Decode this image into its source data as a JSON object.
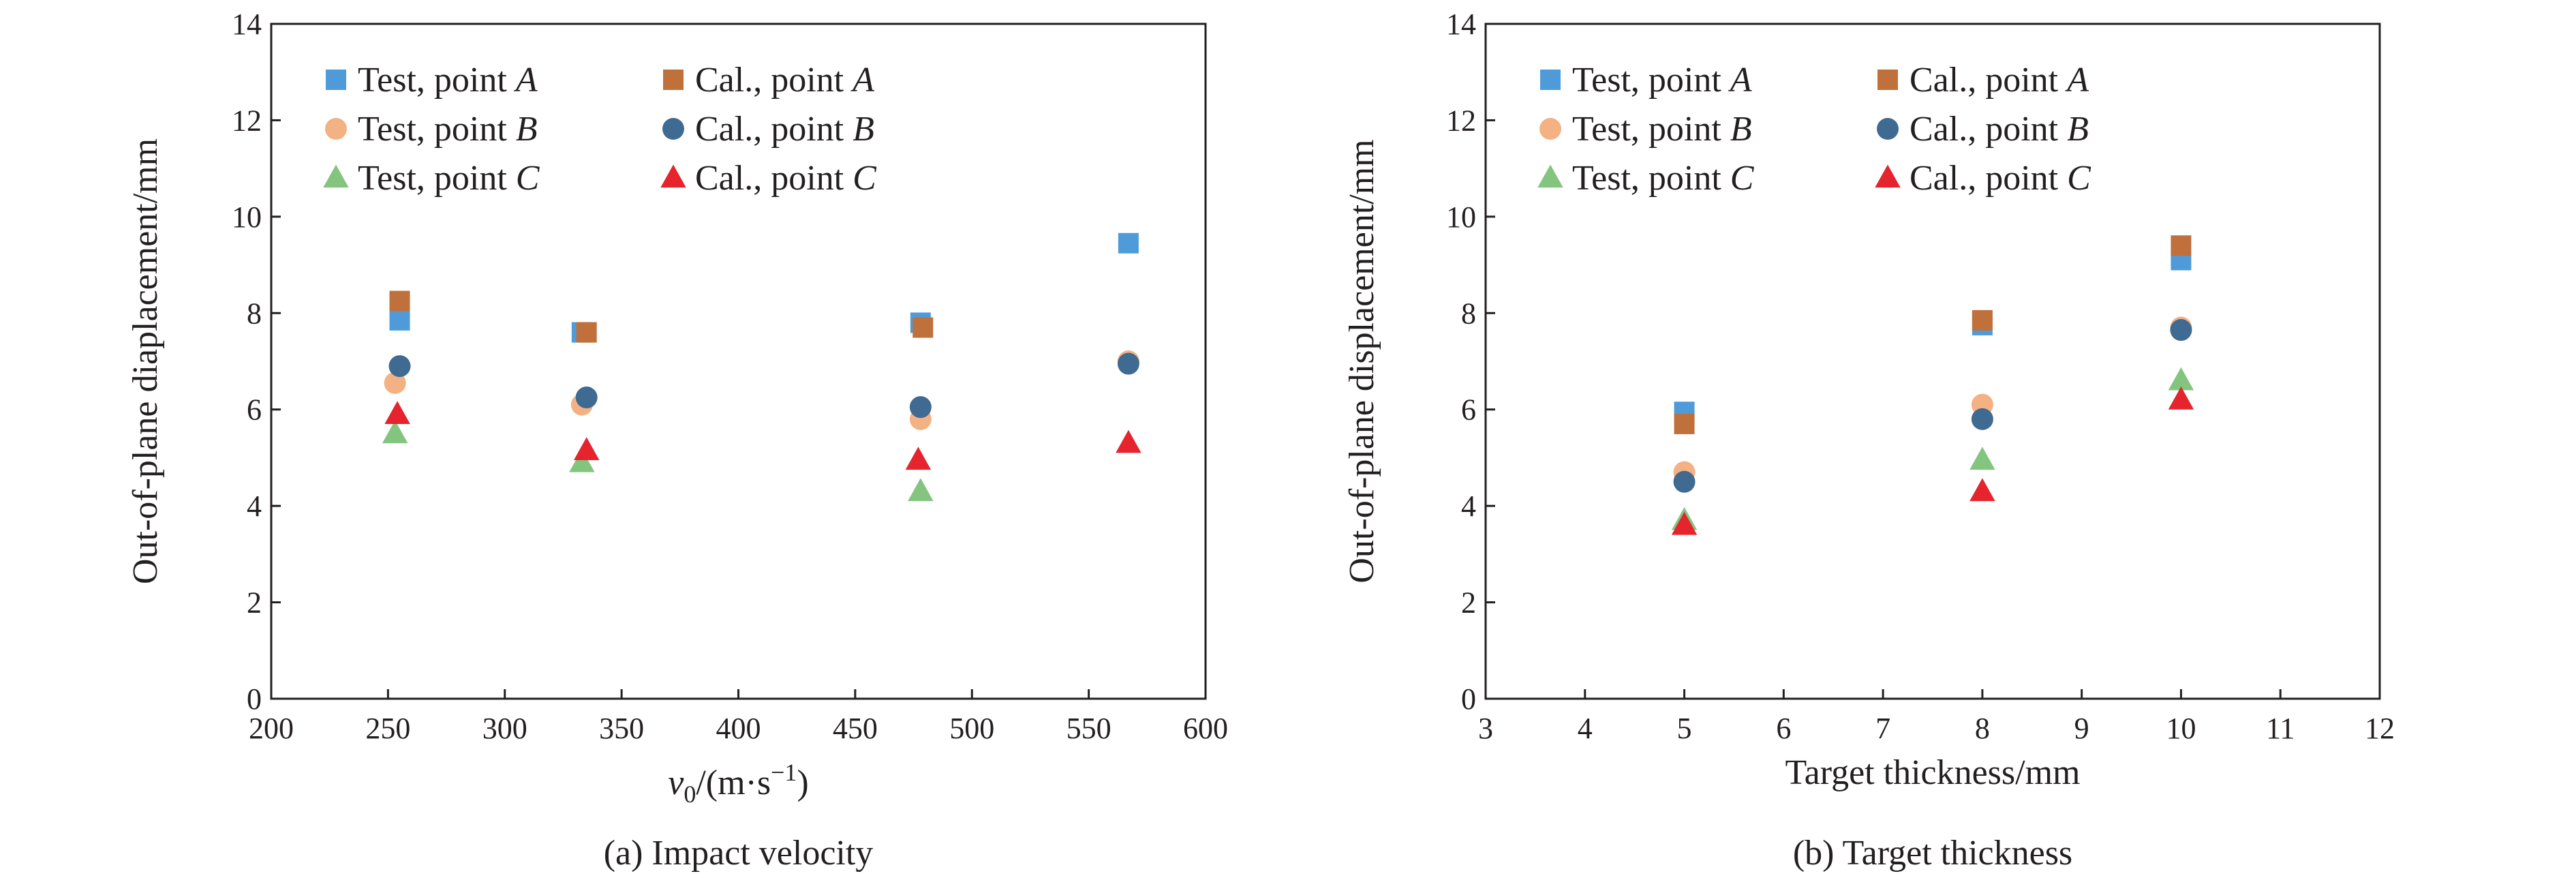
{
  "chart_data": [
    {
      "type": "scatter",
      "caption": "(a) Impact velocity",
      "xlabel": "v0/(m·s−1)",
      "xlabel_parts": {
        "var": "v",
        "sub": "0",
        "unit_pre": "/(m·s",
        "sup": "−1",
        "unit_post": ")"
      },
      "ylabel": "Out-of-plane diaplacement/mm",
      "xlim": [
        200,
        600
      ],
      "ylim": [
        0,
        14
      ],
      "xticks": [
        200,
        250,
        300,
        350,
        400,
        450,
        500,
        550,
        600
      ],
      "yticks": [
        0,
        2,
        4,
        6,
        8,
        10,
        12,
        14
      ],
      "grid": false,
      "legend_position": "top-left",
      "series": [
        {
          "name": "Test, point A",
          "label_prefix": "Test, point ",
          "label_italic": "A",
          "marker": "square",
          "color": "#4f9bd9",
          "points": [
            [
              255,
              7.85
            ],
            [
              333,
              7.6
            ],
            [
              478,
              7.8
            ],
            [
              567,
              9.45
            ]
          ]
        },
        {
          "name": "Test, point B",
          "label_prefix": "Test, point ",
          "label_italic": "B",
          "marker": "circle",
          "color": "#f4b183",
          "points": [
            [
              253,
              6.55
            ],
            [
              333,
              6.1
            ],
            [
              478,
              5.8
            ],
            [
              567,
              7.0
            ]
          ]
        },
        {
          "name": "Test, point C",
          "label_prefix": "Test, point ",
          "label_italic": "C",
          "marker": "triangle",
          "color": "#83c57e",
          "points": [
            [
              253,
              5.5
            ],
            [
              333,
              4.9
            ],
            [
              478,
              4.3
            ]
          ]
        },
        {
          "name": "Cal., point A",
          "label_prefix": "Cal., point ",
          "label_italic": "A",
          "marker": "square",
          "color": "#c0703a",
          "points": [
            [
              255,
              8.25
            ],
            [
              335,
              7.6
            ],
            [
              479,
              7.7
            ]
          ]
        },
        {
          "name": "Cal., point B",
          "label_prefix": "Cal., point ",
          "label_italic": "B",
          "marker": "circle",
          "color": "#3f6a91",
          "points": [
            [
              255,
              6.9
            ],
            [
              335,
              6.25
            ],
            [
              478,
              6.05
            ],
            [
              567,
              6.95
            ]
          ]
        },
        {
          "name": "Cal., point C",
          "label_prefix": "Cal., point ",
          "label_italic": "C",
          "marker": "triangle",
          "color": "#e5242e",
          "points": [
            [
              254,
              5.9
            ],
            [
              335,
              5.15
            ],
            [
              477,
              4.95
            ],
            [
              567,
              5.3
            ]
          ]
        }
      ]
    },
    {
      "type": "scatter",
      "caption": "(b) Target thickness",
      "xlabel": "Target thickness/mm",
      "ylabel": "Out-of-plane displacement/mm",
      "xlim": [
        3,
        12
      ],
      "ylim": [
        0,
        14
      ],
      "xticks": [
        3,
        4,
        5,
        6,
        7,
        8,
        9,
        10,
        11,
        12
      ],
      "yticks": [
        0,
        2,
        4,
        6,
        8,
        10,
        12,
        14
      ],
      "grid": false,
      "legend_position": "top-left",
      "series": [
        {
          "name": "Test, point A",
          "label_prefix": "Test, point ",
          "label_italic": "A",
          "marker": "square",
          "color": "#4f9bd9",
          "points": [
            [
              5,
              5.95
            ],
            [
              8,
              7.75
            ],
            [
              10,
              9.1
            ]
          ]
        },
        {
          "name": "Test, point B",
          "label_prefix": "Test, point ",
          "label_italic": "B",
          "marker": "circle",
          "color": "#f4b183",
          "points": [
            [
              5,
              4.7
            ],
            [
              8,
              6.1
            ],
            [
              10,
              7.7
            ]
          ]
        },
        {
          "name": "Test, point C",
          "label_prefix": "Test, point ",
          "label_italic": "C",
          "marker": "triangle",
          "color": "#83c57e",
          "points": [
            [
              5,
              3.7
            ],
            [
              8,
              4.95
            ],
            [
              10,
              6.6
            ]
          ]
        },
        {
          "name": "Cal., point A",
          "label_prefix": "Cal., point ",
          "label_italic": "A",
          "marker": "square",
          "color": "#c0703a",
          "points": [
            [
              5,
              5.7
            ],
            [
              8,
              7.85
            ],
            [
              10,
              9.4
            ]
          ]
        },
        {
          "name": "Cal., point B",
          "label_prefix": "Cal., point ",
          "label_italic": "B",
          "marker": "circle",
          "color": "#3f6a91",
          "points": [
            [
              5,
              4.5
            ],
            [
              8,
              5.8
            ],
            [
              10,
              7.65
            ]
          ]
        },
        {
          "name": "Cal., point C",
          "label_prefix": "Cal., point ",
          "label_italic": "C",
          "marker": "triangle",
          "color": "#e5242e",
          "points": [
            [
              5,
              3.6
            ],
            [
              8,
              4.3
            ],
            [
              10,
              6.2
            ]
          ]
        }
      ]
    }
  ]
}
